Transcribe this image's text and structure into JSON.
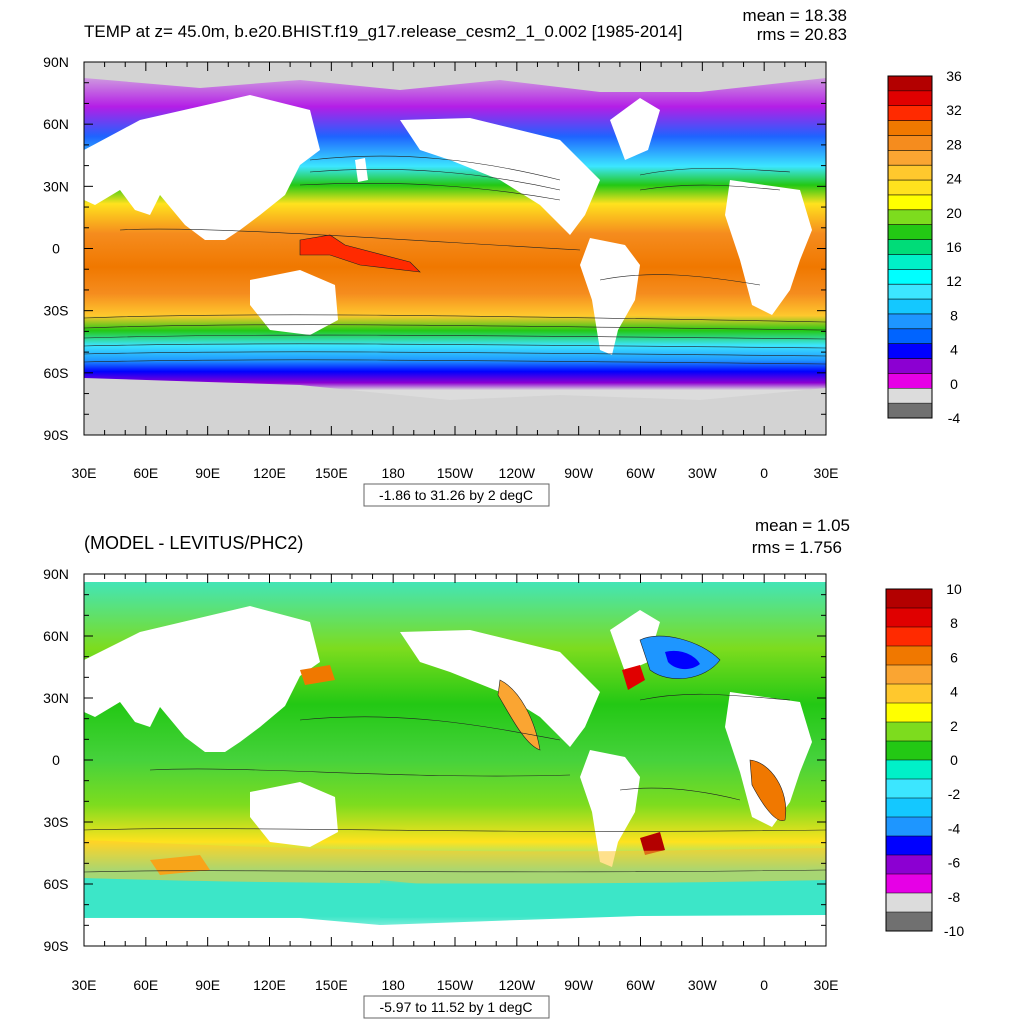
{
  "panels": [
    {
      "title": "TEMP at z=  45.0m, b.e20.BHIST.f19_g17.release_cesm2_1_0.002 [1985-2014]",
      "mean_text": "mean = 18.38",
      "rms_text": "rms = 20.83",
      "range_text": "-1.86 to 31.26 by 2 degC",
      "lat_labels": [
        "90N",
        "60N",
        "30N",
        "0",
        "30S",
        "60S",
        "90S"
      ],
      "lon_labels": [
        "30E",
        "60E",
        "90E",
        "120E",
        "150E",
        "180",
        "150W",
        "120W",
        "90W",
        "60W",
        "30W",
        "0",
        "30E"
      ],
      "colorbar_labels": [
        "36",
        "32",
        "28",
        "24",
        "20",
        "16",
        "12",
        "8",
        "4",
        "0",
        "-4"
      ],
      "colorbar_colors": [
        "#b30000",
        "#e00000",
        "#ff2a00",
        "#f07800",
        "#f58c1e",
        "#faa532",
        "#ffc82d",
        "#ffe21e",
        "#ffff00",
        "#7ddc1e",
        "#23c814",
        "#00dc78",
        "#00f0c8",
        "#00ffff",
        "#3ce6ff",
        "#14c8ff",
        "#1e96ff",
        "#0064ff",
        "#0000ff",
        "#8c00d2",
        "#e600e6",
        "#dcdcdc",
        "#707070"
      ],
      "land_color": "#d3d3d3"
    },
    {
      "title": "(MODEL - LEVITUS/PHC2)",
      "mean_text": "mean = 1.05",
      "rms_text": "rms = 1.756",
      "range_text": "-5.97 to 11.52 by 1 degC",
      "lat_labels": [
        "90N",
        "60N",
        "30N",
        "0",
        "30S",
        "60S",
        "90S"
      ],
      "lon_labels": [
        "30E",
        "60E",
        "90E",
        "120E",
        "150E",
        "180",
        "150W",
        "120W",
        "90W",
        "60W",
        "30W",
        "0",
        "30E"
      ],
      "colorbar_labels": [
        "10",
        "8",
        "6",
        "4",
        "2",
        "0",
        "-2",
        "-4",
        "-6",
        "-8",
        "-10"
      ],
      "colorbar_colors": [
        "#b30000",
        "#e00000",
        "#ff2a00",
        "#f07800",
        "#faa532",
        "#ffc82d",
        "#ffff00",
        "#7ddc1e",
        "#23c814",
        "#00f0c8",
        "#3ce6ff",
        "#14c8ff",
        "#1e96ff",
        "#0000ff",
        "#8c00d2",
        "#e600e6",
        "#dcdcdc",
        "#707070"
      ],
      "land_color": "#ffffff"
    }
  ]
}
